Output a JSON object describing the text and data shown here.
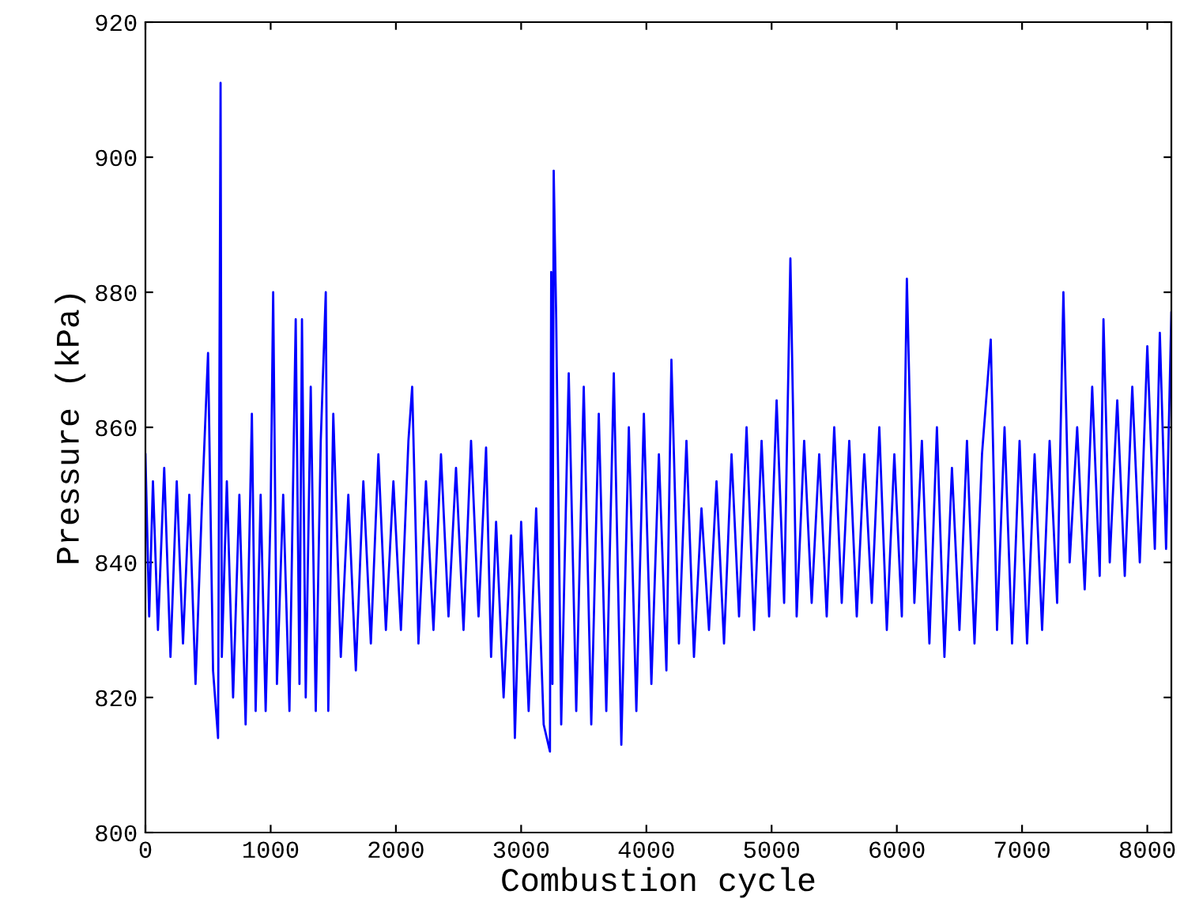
{
  "chart_data": {
    "type": "line",
    "xlabel": "Combustion cycle",
    "ylabel": "Pressure (kPa)",
    "xlim": [
      0,
      8192
    ],
    "ylim": [
      800,
      920
    ],
    "xticks": [
      0,
      1000,
      2000,
      3000,
      4000,
      5000,
      6000,
      7000,
      8000
    ],
    "yticks": [
      800,
      820,
      840,
      860,
      880,
      900,
      920
    ],
    "grid": false,
    "line_style": "solid",
    "marker": "none",
    "series": [
      {
        "color": "#0000ff",
        "x": [
          0,
          30,
          60,
          100,
          150,
          200,
          250,
          300,
          350,
          400,
          450,
          500,
          540,
          580,
          600,
          610,
          650,
          700,
          750,
          800,
          850,
          880,
          920,
          960,
          1000,
          1020,
          1050,
          1100,
          1150,
          1200,
          1230,
          1250,
          1280,
          1320,
          1360,
          1400,
          1440,
          1460,
          1500,
          1560,
          1620,
          1680,
          1740,
          1800,
          1860,
          1920,
          1980,
          2040,
          2100,
          2130,
          2180,
          2240,
          2300,
          2360,
          2420,
          2480,
          2540,
          2600,
          2660,
          2720,
          2760,
          2800,
          2860,
          2920,
          2950,
          3000,
          3060,
          3120,
          3180,
          3230,
          3240,
          3250,
          3260,
          3280,
          3320,
          3380,
          3440,
          3500,
          3560,
          3620,
          3680,
          3740,
          3800,
          3860,
          3920,
          3980,
          4040,
          4100,
          4160,
          4200,
          4260,
          4320,
          4380,
          4440,
          4500,
          4560,
          4620,
          4680,
          4740,
          4800,
          4860,
          4920,
          4980,
          5040,
          5100,
          5150,
          5200,
          5260,
          5320,
          5380,
          5440,
          5500,
          5560,
          5620,
          5680,
          5740,
          5800,
          5860,
          5920,
          5980,
          6040,
          6080,
          6140,
          6200,
          6260,
          6320,
          6380,
          6440,
          6500,
          6560,
          6620,
          6680,
          6750,
          6800,
          6860,
          6920,
          6980,
          7040,
          7100,
          7160,
          7220,
          7280,
          7330,
          7380,
          7440,
          7500,
          7560,
          7620,
          7650,
          7700,
          7760,
          7820,
          7880,
          7940,
          8000,
          8060,
          8100,
          8150,
          8192
        ],
        "values": [
          856,
          832,
          852,
          830,
          854,
          826,
          852,
          828,
          850,
          822,
          848,
          871,
          824,
          814,
          911,
          826,
          852,
          820,
          850,
          816,
          862,
          818,
          850,
          818,
          848,
          880,
          822,
          850,
          818,
          876,
          822,
          876,
          820,
          866,
          818,
          858,
          880,
          818,
          862,
          826,
          850,
          824,
          852,
          828,
          856,
          830,
          852,
          830,
          858,
          866,
          828,
          852,
          830,
          856,
          832,
          854,
          830,
          858,
          832,
          857,
          826,
          846,
          820,
          844,
          814,
          846,
          818,
          848,
          816,
          812,
          883,
          822,
          898,
          876,
          816,
          868,
          818,
          866,
          816,
          862,
          818,
          868,
          813,
          860,
          818,
          862,
          822,
          856,
          824,
          870,
          828,
          858,
          826,
          848,
          830,
          852,
          828,
          856,
          832,
          860,
          830,
          858,
          832,
          864,
          834,
          885,
          832,
          858,
          834,
          856,
          832,
          860,
          834,
          858,
          832,
          856,
          834,
          860,
          830,
          856,
          832,
          882,
          834,
          858,
          828,
          860,
          826,
          854,
          830,
          858,
          828,
          856,
          873,
          830,
          860,
          828,
          858,
          828,
          856,
          830,
          858,
          834,
          880,
          840,
          860,
          836,
          866,
          838,
          876,
          840,
          864,
          838,
          866,
          840,
          872,
          842,
          874,
          842,
          877
        ]
      }
    ]
  }
}
